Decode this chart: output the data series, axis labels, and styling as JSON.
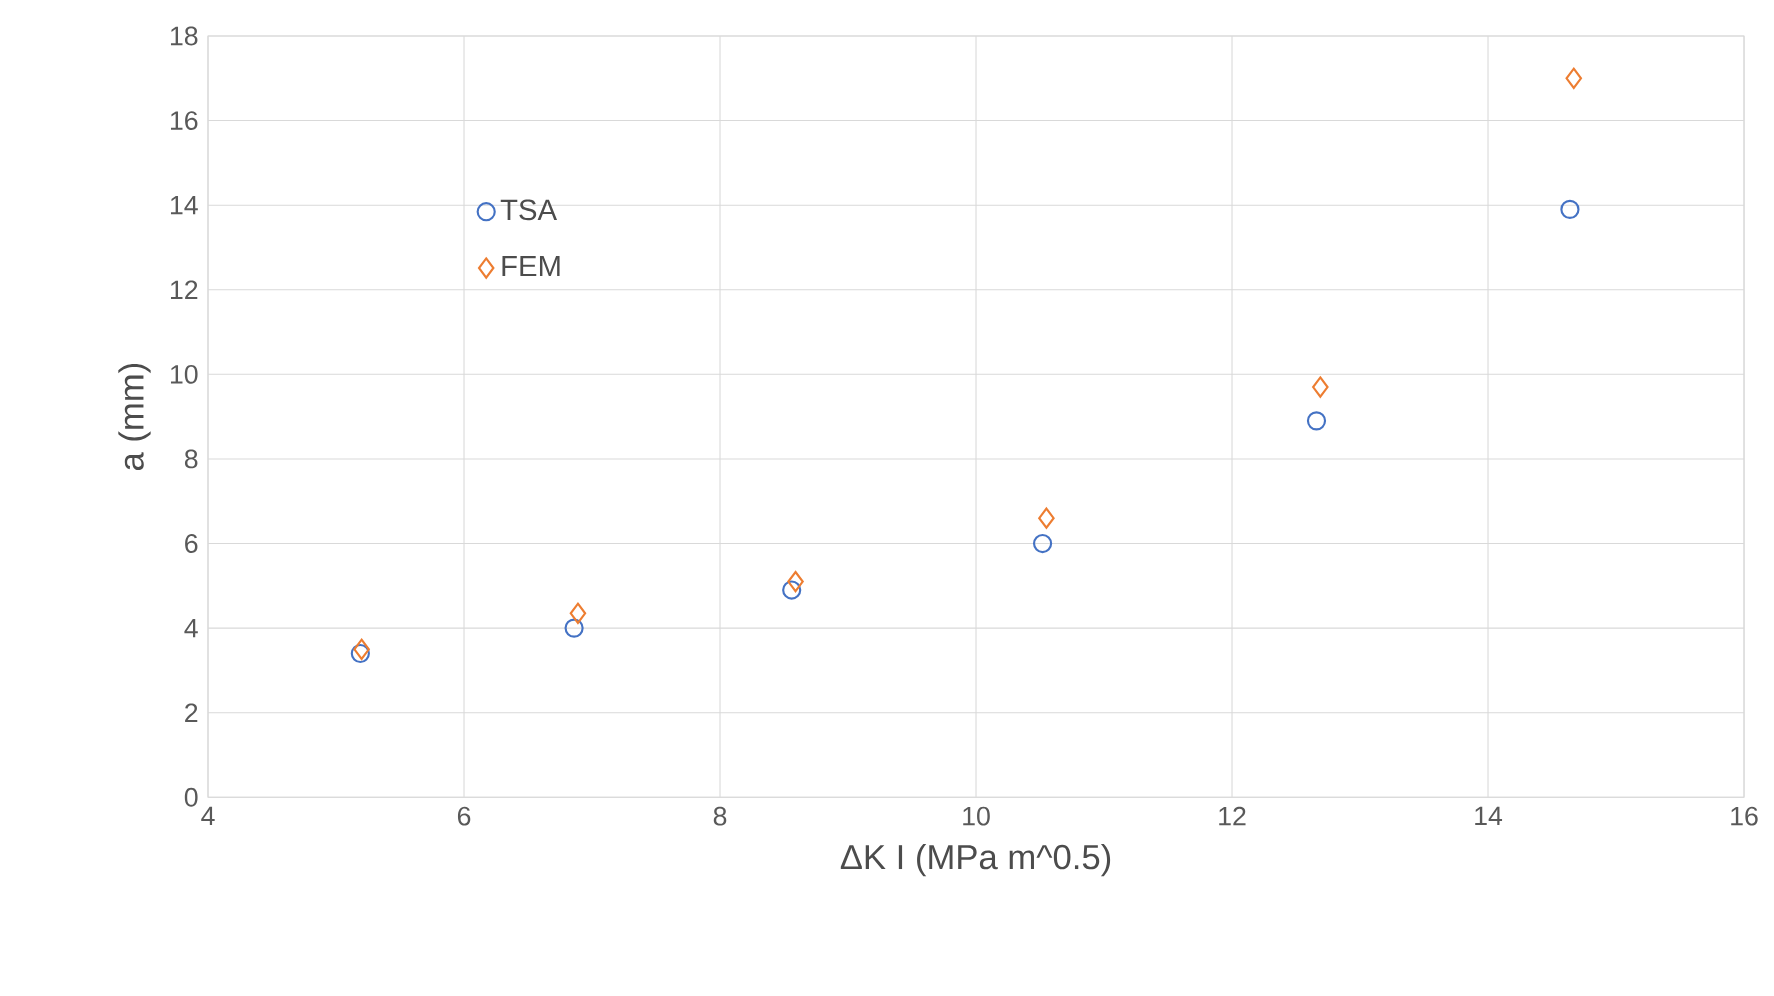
{
  "chart_data": {
    "type": "scatter",
    "xlabel": "ΔK I (MPa m^0.5)",
    "ylabel": "a (mm)",
    "xlim": [
      4,
      16
    ],
    "xticks": [
      4,
      6,
      8,
      10,
      12,
      14,
      16
    ],
    "ylim": [
      0,
      18
    ],
    "yticks": [
      0,
      2,
      4,
      6,
      8,
      10,
      12,
      14,
      16,
      18
    ],
    "grid": true,
    "legend": "top left",
    "series": [
      {
        "name": "TSA",
        "color": "#4472c4",
        "marker": "circle",
        "x": [
          5.19,
          6.86,
          8.56,
          10.52,
          12.66,
          14.64
        ],
        "values": [
          3.4,
          4.0,
          4.9,
          6.0,
          8.9,
          13.9
        ]
      },
      {
        "name": "FEM",
        "color": "#ed7d31",
        "marker": "diamond",
        "x": [
          5.2,
          6.89,
          8.59,
          10.55,
          12.69,
          14.67
        ],
        "values": [
          3.5,
          4.35,
          5.1,
          6.6,
          9.7,
          17.0
        ]
      }
    ]
  }
}
